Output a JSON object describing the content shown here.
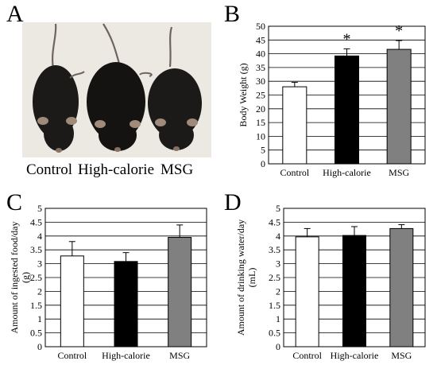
{
  "panels": {
    "A": {
      "letter": "A",
      "labels": [
        "Control",
        "High-calorie",
        "MSG"
      ]
    },
    "B": {
      "letter": "B"
    },
    "C": {
      "letter": "C"
    },
    "D": {
      "letter": "D"
    }
  },
  "colors": {
    "control": "#ffffff",
    "high_calorie": "#000000",
    "msg": "#808080",
    "photo_background": "#ece9e3",
    "mouse": "#1c1a18"
  },
  "chart_data": [
    {
      "id": "B",
      "type": "bar",
      "title": "",
      "xlabel": "",
      "ylabel": "Body Weight (g)",
      "categories": [
        "Control",
        "High-calorie",
        "MSG"
      ],
      "values": [
        28,
        39.2,
        41.6
      ],
      "errors": [
        1.6,
        2.6,
        3.2
      ],
      "significance": [
        "",
        "*",
        "*"
      ],
      "ylim": [
        0,
        50
      ],
      "yticks": [
        0,
        5,
        10,
        15,
        20,
        25,
        30,
        35,
        40,
        45,
        50
      ],
      "gridlines": true,
      "colors": [
        "#ffffff",
        "#000000",
        "#808080"
      ]
    },
    {
      "id": "C",
      "type": "bar",
      "title": "",
      "xlabel": "",
      "ylabel": "Amount of ingested food/day (g)",
      "categories": [
        "Control",
        "High-calorie",
        "MSG"
      ],
      "values": [
        3.28,
        3.08,
        3.95
      ],
      "errors": [
        0.52,
        0.32,
        0.45
      ],
      "ylim": [
        0,
        5
      ],
      "yticks": [
        0,
        0.5,
        1,
        1.5,
        2,
        2.5,
        3,
        3.5,
        4,
        4.5,
        5
      ],
      "gridlines": true,
      "colors": [
        "#ffffff",
        "#000000",
        "#808080"
      ]
    },
    {
      "id": "D",
      "type": "bar",
      "title": "",
      "xlabel": "",
      "ylabel": "Amount of drinking water/day (mL)",
      "categories": [
        "Control",
        "High-calorie",
        "MSG"
      ],
      "values": [
        3.97,
        4.02,
        4.27
      ],
      "errors": [
        0.3,
        0.32,
        0.14
      ],
      "ylim": [
        0,
        5
      ],
      "yticks": [
        0,
        0.5,
        1,
        1.5,
        2,
        2.5,
        3,
        3.5,
        4,
        4.5,
        5
      ],
      "gridlines": true,
      "colors": [
        "#ffffff",
        "#000000",
        "#808080"
      ]
    }
  ]
}
